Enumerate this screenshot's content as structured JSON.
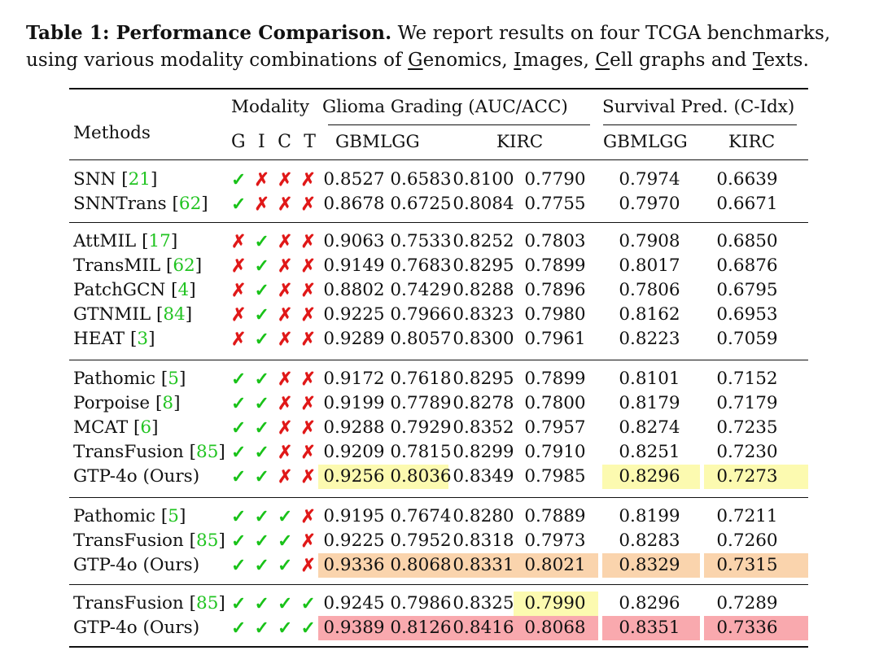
{
  "caption": {
    "label": "Table 1: Performance Comparison.",
    "text_a": " We report results on four TCGA benchmarks,",
    "text_b": "using various modality combinations of ",
    "g": "G",
    "enomics": "enomics, ",
    "i": "I",
    "mages": "mages, ",
    "c": "C",
    "ell": "ell graphs and ",
    "t": "T",
    "exts": "exts."
  },
  "header": {
    "methods": "Methods",
    "modality": "Modality",
    "glioma": "Glioma Grading (AUC/ACC)",
    "survival": "Survival Pred. (C-Idx)",
    "mod_letters": [
      "G",
      "I",
      "C",
      "T"
    ],
    "gbmlgg_a": "GBMLGG",
    "kirc_a": "KIRC",
    "gbmlgg_b": "GBMLGG",
    "kirc_b": "KIRC"
  },
  "marks": {
    "yes": "✓",
    "no": "✗"
  },
  "highlight_colors": {
    "yellow": "#fcfab0",
    "orange": "#fad4ad",
    "red": "#f9a9ae"
  },
  "rows": [
    {
      "name": "SNN ",
      "ref": "21",
      "mods": [
        1,
        0,
        0,
        0
      ],
      "values": [
        "0.8527",
        "0.6583",
        "0.8100",
        "0.7790",
        "0.7974",
        "0.6639"
      ],
      "hl": [
        "",
        "",
        "",
        "",
        "",
        ""
      ]
    },
    {
      "name": "SNNTrans ",
      "ref": "62",
      "mods": [
        1,
        0,
        0,
        0
      ],
      "values": [
        "0.8678",
        "0.6725",
        "0.8084",
        "0.7755",
        "0.7970",
        "0.6671"
      ],
      "hl": [
        "",
        "",
        "",
        "",
        "",
        ""
      ]
    },
    {
      "name": "AttMIL ",
      "ref": "17",
      "mods": [
        0,
        1,
        0,
        0
      ],
      "values": [
        "0.9063",
        "0.7533",
        "0.8252",
        "0.7803",
        "0.7908",
        "0.6850"
      ],
      "hl": [
        "",
        "",
        "",
        "",
        "",
        ""
      ]
    },
    {
      "name": "TransMIL ",
      "ref": "62",
      "mods": [
        0,
        1,
        0,
        0
      ],
      "values": [
        "0.9149",
        "0.7683",
        "0.8295",
        "0.7899",
        "0.8017",
        "0.6876"
      ],
      "hl": [
        "",
        "",
        "",
        "",
        "",
        ""
      ]
    },
    {
      "name": "PatchGCN ",
      "ref": "4",
      "mods": [
        0,
        1,
        0,
        0
      ],
      "values": [
        "0.8802",
        "0.7429",
        "0.8288",
        "0.7896",
        "0.7806",
        "0.6795"
      ],
      "hl": [
        "",
        "",
        "",
        "",
        "",
        ""
      ]
    },
    {
      "name": "GTNMIL ",
      "ref": "84",
      "mods": [
        0,
        1,
        0,
        0
      ],
      "values": [
        "0.9225",
        "0.7966",
        "0.8323",
        "0.7980",
        "0.8162",
        "0.6953"
      ],
      "hl": [
        "",
        "",
        "",
        "",
        "",
        ""
      ]
    },
    {
      "name": "HEAT ",
      "ref": "3",
      "mods": [
        0,
        1,
        0,
        0
      ],
      "values": [
        "0.9289",
        "0.8057",
        "0.8300",
        "0.7961",
        "0.8223",
        "0.7059"
      ],
      "hl": [
        "",
        "",
        "",
        "",
        "",
        ""
      ]
    },
    {
      "name": "Pathomic ",
      "ref": "5",
      "mods": [
        1,
        1,
        0,
        0
      ],
      "values": [
        "0.9172",
        "0.7618",
        "0.8295",
        "0.7899",
        "0.8101",
        "0.7152"
      ],
      "hl": [
        "",
        "",
        "",
        "",
        "",
        ""
      ]
    },
    {
      "name": "Porpoise ",
      "ref": "8",
      "mods": [
        1,
        1,
        0,
        0
      ],
      "values": [
        "0.9199",
        "0.7789",
        "0.8278",
        "0.7800",
        "0.8179",
        "0.7179"
      ],
      "hl": [
        "",
        "",
        "",
        "",
        "",
        ""
      ]
    },
    {
      "name": "MCAT ",
      "ref": "6",
      "mods": [
        1,
        1,
        0,
        0
      ],
      "values": [
        "0.9288",
        "0.7929",
        "0.8352",
        "0.7957",
        "0.8274",
        "0.7235"
      ],
      "hl": [
        "",
        "",
        "",
        "",
        "",
        ""
      ]
    },
    {
      "name": "TransFusion ",
      "ref": "85",
      "mods": [
        1,
        1,
        0,
        0
      ],
      "values": [
        "0.9209",
        "0.7815",
        "0.8299",
        "0.7910",
        "0.8251",
        "0.7230"
      ],
      "hl": [
        "",
        "",
        "",
        "",
        "",
        ""
      ]
    },
    {
      "name": "GTP-4o (Ours)",
      "ref": "",
      "mods": [
        1,
        1,
        0,
        0
      ],
      "values": [
        "0.9256",
        "0.8036",
        "0.8349",
        "0.7985",
        "0.8296",
        "0.7273"
      ],
      "hl": [
        "yellow",
        "yellow",
        "",
        "",
        "yellow",
        "yellow"
      ]
    },
    {
      "name": "Pathomic ",
      "ref": "5",
      "mods": [
        1,
        1,
        1,
        0
      ],
      "values": [
        "0.9195",
        "0.7674",
        "0.8280",
        "0.7889",
        "0.8199",
        "0.7211"
      ],
      "hl": [
        "",
        "",
        "",
        "",
        "",
        ""
      ]
    },
    {
      "name": "TransFusion ",
      "ref": "85",
      "mods": [
        1,
        1,
        1,
        0
      ],
      "values": [
        "0.9225",
        "0.7952",
        "0.8318",
        "0.7973",
        "0.8283",
        "0.7260"
      ],
      "hl": [
        "",
        "",
        "",
        "",
        "",
        ""
      ]
    },
    {
      "name": "GTP-4o (Ours)",
      "ref": "",
      "mods": [
        1,
        1,
        1,
        0
      ],
      "values": [
        "0.9336",
        "0.8068",
        "0.8331",
        "0.8021",
        "0.8329",
        "0.7315"
      ],
      "hl": [
        "orange",
        "orange",
        "orange",
        "orange",
        "orange",
        "orange"
      ]
    },
    {
      "name": "TransFusion ",
      "ref": "85",
      "mods": [
        1,
        1,
        1,
        1
      ],
      "values": [
        "0.9245",
        "0.7986",
        "0.8325",
        "0.7990",
        "0.8296",
        "0.7289"
      ],
      "hl": [
        "",
        "",
        "",
        "yellow",
        "",
        ""
      ]
    },
    {
      "name": "GTP-4o (Ours)",
      "ref": "",
      "mods": [
        1,
        1,
        1,
        1
      ],
      "values": [
        "0.9389",
        "0.8126",
        "0.8416",
        "0.8068",
        "0.8351",
        "0.7336"
      ],
      "hl": [
        "red",
        "red",
        "red",
        "red",
        "red",
        "red"
      ]
    }
  ]
}
